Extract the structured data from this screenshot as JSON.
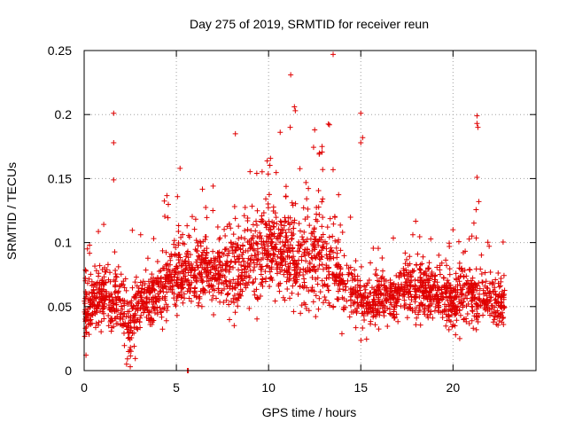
{
  "chart_data": {
    "type": "scatter",
    "title": "Day 275 of 2019, SRMTID for receiver reun",
    "xlabel": "GPS time / hours",
    "ylabel": "SRMTID / TECUs",
    "xlim": [
      0,
      24.5
    ],
    "ylim": [
      0,
      0.25
    ],
    "x_ticks": [
      0,
      5,
      10,
      15,
      20
    ],
    "x_tick_labels": [
      "0",
      "5",
      "10",
      "15",
      "20"
    ],
    "y_ticks": [
      0,
      0.05,
      0.1,
      0.15,
      0.2,
      0.25
    ],
    "y_tick_labels": [
      "0",
      "0.05",
      "0.1",
      "0.15",
      "0.2",
      "0.25"
    ],
    "grid": true,
    "marker": "+",
    "marker_color": "#e00000",
    "series": [
      {
        "name": "SRMTID",
        "profile_hours": [
          0,
          1,
          2,
          2.5,
          3,
          4,
          5,
          6,
          7,
          8,
          9,
          10,
          11,
          12,
          13,
          14,
          15,
          16,
          17,
          18,
          19,
          20,
          21,
          22,
          22.8
        ],
        "profile_mean": [
          0.045,
          0.06,
          0.055,
          0.03,
          0.055,
          0.06,
          0.075,
          0.08,
          0.075,
          0.08,
          0.085,
          0.1,
          0.09,
          0.085,
          0.09,
          0.07,
          0.055,
          0.055,
          0.06,
          0.065,
          0.06,
          0.055,
          0.06,
          0.055,
          0.05
        ],
        "profile_spread": [
          0.02,
          0.025,
          0.028,
          0.03,
          0.025,
          0.025,
          0.028,
          0.03,
          0.028,
          0.035,
          0.035,
          0.035,
          0.04,
          0.04,
          0.04,
          0.03,
          0.025,
          0.022,
          0.022,
          0.025,
          0.022,
          0.025,
          0.025,
          0.02,
          0.02
        ],
        "point_count": 2600,
        "outliers": [
          {
            "x": 1.6,
            "y": 0.201
          },
          {
            "x": 1.6,
            "y": 0.178
          },
          {
            "x": 1.6,
            "y": 0.149
          },
          {
            "x": 8.2,
            "y": 0.185
          },
          {
            "x": 11.2,
            "y": 0.231
          },
          {
            "x": 11.4,
            "y": 0.206
          },
          {
            "x": 11.45,
            "y": 0.203
          },
          {
            "x": 12.5,
            "y": 0.188
          },
          {
            "x": 12.9,
            "y": 0.175
          },
          {
            "x": 13.3,
            "y": 0.192
          },
          {
            "x": 13.5,
            "y": 0.247
          },
          {
            "x": 15.0,
            "y": 0.201
          },
          {
            "x": 15.1,
            "y": 0.182
          },
          {
            "x": 15.0,
            "y": 0.178
          },
          {
            "x": 21.3,
            "y": 0.199
          },
          {
            "x": 21.3,
            "y": 0.193
          },
          {
            "x": 21.35,
            "y": 0.19
          },
          {
            "x": 21.3,
            "y": 0.151
          },
          {
            "x": 21.4,
            "y": 0.132
          },
          {
            "x": 20.0,
            "y": 0.11
          },
          {
            "x": 5.6,
            "y": 0.0
          },
          {
            "x": 5.65,
            "y": 0.0
          },
          {
            "x": 2.5,
            "y": 0.003
          },
          {
            "x": 2.3,
            "y": 0.005
          },
          {
            "x": 0.1,
            "y": 0.012
          }
        ]
      }
    ]
  }
}
